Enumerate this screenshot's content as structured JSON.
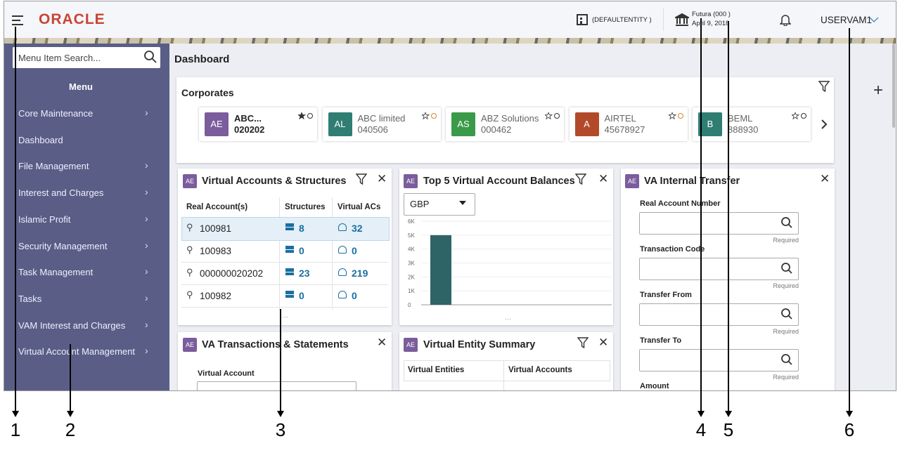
{
  "header": {
    "brand": "ORACLE",
    "entity": "(DEFAULTENTITY )",
    "branch": "Futura (000 )",
    "date": "April 9, 2018",
    "user": "USERVAM1"
  },
  "sidebar": {
    "search_placeholder": "Menu Item Search...",
    "title": "Menu",
    "items": [
      "Core Maintenance",
      "Dashboard",
      "File Management",
      "Interest and Charges",
      "Islamic Profit",
      "Security Management",
      "Task Management",
      "Tasks",
      "VAM Interest and Charges",
      "Virtual Account Management"
    ]
  },
  "dashboard": {
    "title": "Dashboard",
    "corporates": {
      "title": "Corporates",
      "cards": [
        {
          "initials": "AE",
          "name": "ABC...",
          "id": "020202"
        },
        {
          "initials": "AL",
          "name": "ABC limited",
          "id": "040506"
        },
        {
          "initials": "AS",
          "name": "ABZ Solutions",
          "id": "000462"
        },
        {
          "initials": "A",
          "name": "AIRTEL",
          "id": "45678927"
        },
        {
          "initials": "B",
          "name": "BEML",
          "id": "888930"
        }
      ]
    },
    "widgets": {
      "va_structures": {
        "badge": "AE",
        "title": "Virtual Accounts & Structures",
        "columns": [
          "Real Account(s)",
          "Structures",
          "Virtual ACs"
        ],
        "rows": [
          [
            "100981",
            8,
            32
          ],
          [
            "100983",
            0,
            0
          ],
          [
            "000000020202",
            23,
            219
          ],
          [
            "100982",
            0,
            0
          ]
        ]
      },
      "top5": {
        "badge": "AE",
        "title": "Top 5 Virtual Account Balances",
        "currency": "GBP",
        "ylim": [
          0,
          6000
        ],
        "yticks": [
          {
            "value": 0,
            "label": "0"
          },
          {
            "value": 1000,
            "label": "1K"
          },
          {
            "value": 2000,
            "label": "2K"
          },
          {
            "value": 3000,
            "label": "3K"
          },
          {
            "value": 4000,
            "label": "4K"
          },
          {
            "value": 5000,
            "label": "5K"
          },
          {
            "value": 6000,
            "label": "6K"
          }
        ],
        "values": [
          5000
        ],
        "color": "#2e6466"
      },
      "internal_transfer": {
        "badge": "AE",
        "title": "VA Internal Transfer",
        "fields": [
          "Real Account Number",
          "Transaction Code",
          "Transfer From",
          "Transfer To",
          "Amount"
        ],
        "required_label": "Required"
      },
      "transactions": {
        "badge": "AE",
        "title": "VA Transactions & Statements",
        "field": "Virtual Account"
      },
      "entity_summary": {
        "badge": "AE",
        "title": "Virtual Entity Summary",
        "columns": [
          "Virtual Entities",
          "Virtual Accounts"
        ]
      }
    }
  },
  "callouts": [
    "1",
    "2",
    "3",
    "4",
    "5",
    "6"
  ]
}
